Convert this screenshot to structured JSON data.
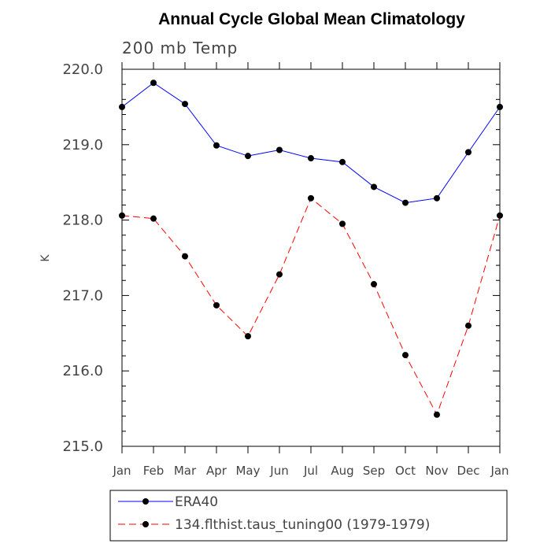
{
  "chart_data": {
    "type": "line",
    "title": "Annual Cycle Global Mean Climatology",
    "subtitle": "200 mb Temp",
    "xlabel": "",
    "ylabel": "K",
    "categories": [
      "Jan",
      "Feb",
      "Mar",
      "Apr",
      "May",
      "Jun",
      "Jul",
      "Aug",
      "Sep",
      "Oct",
      "Nov",
      "Dec",
      "Jan"
    ],
    "ylim": [
      215.0,
      220.0
    ],
    "yticks": [
      "215.0",
      "216.0",
      "217.0",
      "218.0",
      "219.0",
      "220.0"
    ],
    "grid": false,
    "legend_position": "bottom",
    "series": [
      {
        "name": "ERA40",
        "color": "#0000ff",
        "line_style": "solid",
        "values": [
          219.5,
          219.82,
          219.54,
          218.99,
          218.85,
          218.93,
          218.82,
          218.77,
          218.44,
          218.23,
          218.29,
          218.9,
          219.5
        ]
      },
      {
        "name": "134.flthist.taus_tuning00 (1979-1979)",
        "color": "#ff0000",
        "line_style": "dashed",
        "values": [
          218.06,
          218.02,
          217.52,
          216.87,
          216.46,
          217.28,
          218.29,
          217.95,
          217.15,
          216.21,
          215.42,
          216.6,
          218.06
        ]
      }
    ]
  }
}
